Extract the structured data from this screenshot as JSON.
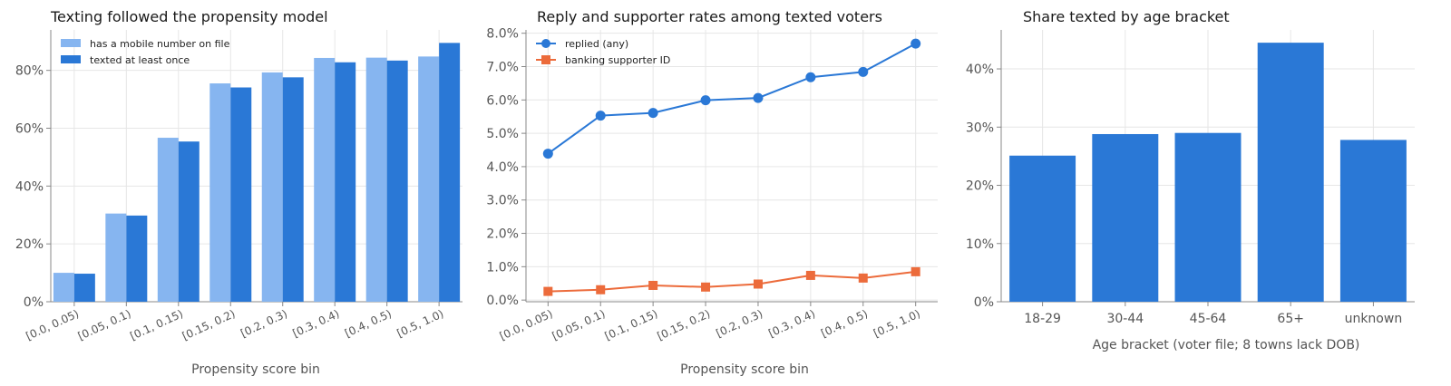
{
  "colors": {
    "light_blue": "#86b5f0",
    "blue": "#2a78d6",
    "orange": "#ec6b3b",
    "grid": "#e6e6e6",
    "spine": "#888888"
  },
  "chart_data": [
    {
      "type": "bar",
      "title": "Texting followed the propensity model",
      "xlabel": "Propensity score bin",
      "ylabel": "",
      "categories": [
        "[0.0, 0.05)",
        "[0.05, 0.1)",
        "[0.1, 0.15)",
        "[0.15, 0.2)",
        "[0.2, 0.3)",
        "[0.3, 0.4)",
        "[0.4, 0.5)",
        "[0.5, 1.0)"
      ],
      "series": [
        {
          "name": "has a mobile number on file",
          "color": "#86b5f0",
          "values": [
            0.1,
            0.305,
            0.567,
            0.755,
            0.793,
            0.843,
            0.844,
            0.848
          ]
        },
        {
          "name": "texted at least once",
          "color": "#2a78d6",
          "values": [
            0.097,
            0.298,
            0.554,
            0.741,
            0.776,
            0.828,
            0.834,
            0.895
          ]
        }
      ],
      "ylim": [
        0,
        0.94
      ],
      "yticks": [
        0,
        0.2,
        0.4,
        0.6,
        0.8
      ],
      "ytick_labels": [
        "0%",
        "20%",
        "40%",
        "60%",
        "80%"
      ],
      "grid": true,
      "legend": "top-left"
    },
    {
      "type": "line",
      "title": "Reply and supporter rates among texted voters",
      "xlabel": "Propensity score bin",
      "ylabel": "",
      "categories": [
        "[0.0, 0.05)",
        "[0.05, 0.1)",
        "[0.1, 0.15)",
        "[0.15, 0.2)",
        "[0.2, 0.3)",
        "[0.3, 0.4)",
        "[0.4, 0.5)",
        "[0.5, 1.0)"
      ],
      "series": [
        {
          "name": "replied (any)",
          "color": "#2a78d6",
          "marker": "circle",
          "values": [
            0.0439,
            0.0553,
            0.0561,
            0.0599,
            0.0606,
            0.0668,
            0.0684,
            0.0769
          ]
        },
        {
          "name": "banking supporter ID",
          "color": "#ec6b3b",
          "marker": "square",
          "values": [
            0.0026,
            0.0031,
            0.0044,
            0.0039,
            0.0048,
            0.0074,
            0.0066,
            0.0085
          ]
        }
      ],
      "ylim": [
        -0.0005,
        0.081
      ],
      "yticks": [
        0,
        0.01,
        0.02,
        0.03,
        0.04,
        0.05,
        0.06,
        0.07,
        0.08
      ],
      "ytick_labels": [
        "0.0%",
        "1.0%",
        "2.0%",
        "3.0%",
        "4.0%",
        "5.0%",
        "6.0%",
        "7.0%",
        "8.0%"
      ],
      "grid": true,
      "legend": "top-left"
    },
    {
      "type": "bar",
      "title": "Share texted by age bracket",
      "xlabel": "Age bracket (voter file; 8 towns lack DOB)",
      "ylabel": "",
      "categories": [
        "18-29",
        "30-44",
        "45-64",
        "65+",
        "unknown"
      ],
      "series": [
        {
          "color": "#2a78d6",
          "values": [
            0.251,
            0.288,
            0.29,
            0.445,
            0.278
          ]
        }
      ],
      "ylim": [
        0,
        0.467
      ],
      "yticks": [
        0,
        0.1,
        0.2,
        0.3,
        0.4
      ],
      "ytick_labels": [
        "0%",
        "10%",
        "20%",
        "30%",
        "40%"
      ],
      "grid": true,
      "legend": "none"
    }
  ]
}
